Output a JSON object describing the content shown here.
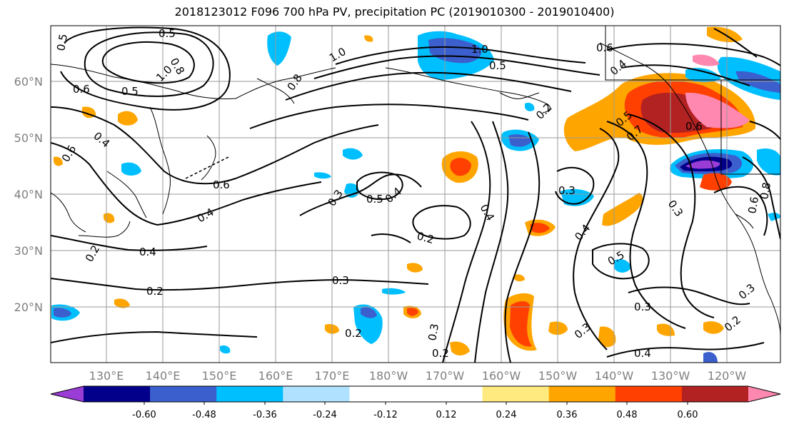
{
  "title": "2018123012 F096 700 hPa PV, precipitation PC (2019010300 - 2019010400)",
  "map": {
    "lat_labels": [
      {
        "text": "60°N",
        "lat": 60
      },
      {
        "text": "50°N",
        "lat": 50
      },
      {
        "text": "40°N",
        "lat": 40
      },
      {
        "text": "30°N",
        "lat": 30
      },
      {
        "text": "20°N",
        "lat": 20
      }
    ],
    "lon_labels": [
      "130°E",
      "140°E",
      "150°E",
      "160°E",
      "170°E",
      "180°W",
      "170°W",
      "160°W",
      "150°W",
      "140°W",
      "130°W",
      "120°W"
    ],
    "contour_labels": [
      "0.5",
      "0.5",
      "0.8",
      "1.0",
      "0.5",
      "0.6",
      "0.6",
      "0.4",
      "1.0",
      "0.8",
      "1.0",
      "0.5",
      "0.6",
      "0.4",
      "0.2",
      "0.5",
      "0.7",
      "0.6",
      "0.6",
      "0.3",
      "0.5",
      "0.4",
      "0.2",
      "0.4",
      "0.3",
      "0.4",
      "0.5",
      "0.3",
      "0.4",
      "0.2",
      "0.3",
      "0.2",
      "0.3",
      "0.2",
      "0.3",
      "0.3",
      "0.4",
      "0.2",
      "0.3",
      "0.2",
      "0.6",
      "0.8"
    ],
    "shading_colors": {
      "neg_060": "#9a3dd6",
      "neg_048": "#02008a",
      "neg_036": "#3b5fcc",
      "neg_024": "#00bfff",
      "neg_012": "#b0e2ff",
      "pos_012": "#ffea80",
      "pos_024": "#ffa500",
      "pos_036": "#ff4000",
      "pos_048": "#b22222",
      "pos_060": "#ff88b0"
    }
  },
  "colorbar": {
    "colors": [
      "#9a3dd6",
      "#02008a",
      "#3b5fcc",
      "#00bfff",
      "#b0e2ff",
      "#ffffff",
      "#ffffff",
      "#ffea80",
      "#ffa500",
      "#ff4000",
      "#b22222",
      "#ff88b0"
    ],
    "tick_labels": [
      "-0.60",
      "-0.48",
      "-0.36",
      "-0.24",
      "-0.12",
      "0.12",
      "0.24",
      "0.36",
      "0.48",
      "0.60"
    ]
  }
}
